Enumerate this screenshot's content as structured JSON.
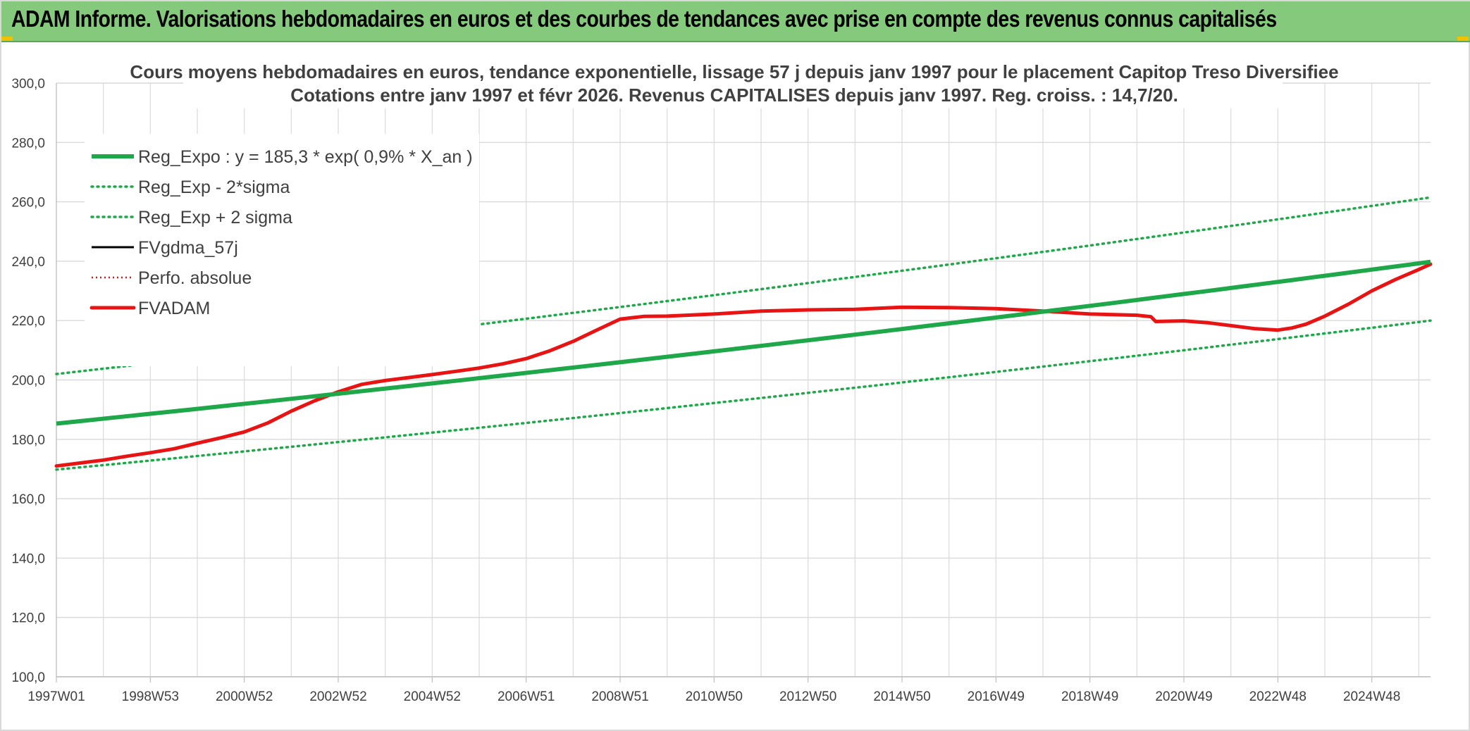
{
  "header": {
    "title": "ADAM Informe. Valorisations hebdomadaires en euros et des courbes de tendances avec prise en compte des revenus connus capitalisés"
  },
  "colors": {
    "banner": "#84c97c",
    "reg_expo": "#1fa84a",
    "fvadam": "#e81414",
    "fvgdma": "#000000",
    "perfo": "#cc1b1b",
    "grid": "#d9d9d9"
  },
  "chart_data": {
    "type": "line",
    "title": "Cours moyens hebdomadaires en euros, tendance exponentielle, lissage 57 j depuis janv 1997 pour le placement Capitop Treso Diversifiee",
    "subtitle": "Cotations entre janv 1997 et févr 2026. Revenus CAPITALISES depuis janv 1997. Reg. croiss. : 14,7/20.",
    "xlabel": "",
    "ylabel": "",
    "xlim": [
      1997.0,
      2026.25
    ],
    "ylim": [
      100,
      300
    ],
    "y_ticks": [
      "100,0",
      "120,0",
      "140,0",
      "160,0",
      "180,0",
      "200,0",
      "220,0",
      "240,0",
      "260,0",
      "280,0",
      "300,0"
    ],
    "x_ticks": [
      {
        "label": "1997W01",
        "x": 1997.0
      },
      {
        "label": "1998W53",
        "x": 1999.0
      },
      {
        "label": "2000W52",
        "x": 2001.0
      },
      {
        "label": "2002W52",
        "x": 2003.0
      },
      {
        "label": "2004W52",
        "x": 2005.0
      },
      {
        "label": "2006W51",
        "x": 2007.0
      },
      {
        "label": "2008W51",
        "x": 2009.0
      },
      {
        "label": "2010W50",
        "x": 2011.0
      },
      {
        "label": "2012W50",
        "x": 2013.0
      },
      {
        "label": "2014W50",
        "x": 2015.0
      },
      {
        "label": "2016W49",
        "x": 2017.0
      },
      {
        "label": "2018W49",
        "x": 2019.0
      },
      {
        "label": "2020W49",
        "x": 2021.0
      },
      {
        "label": "2022W48",
        "x": 2023.0
      },
      {
        "label": "2024W48",
        "x": 2025.0
      }
    ],
    "grid": true,
    "legend_position": "top-left",
    "series": [
      {
        "name": "Reg_Expo : y = 185,3 * exp( 0,9% *  X_an )",
        "style": "solid-thick",
        "x": [
          1997.0,
          2026.25
        ],
        "y": [
          185.3,
          239.8
        ]
      },
      {
        "name": "Reg_Exp - 2*sigma",
        "style": "dotted-green",
        "x": [
          1997.0,
          2026.25
        ],
        "y": [
          169.8,
          220.0
        ]
      },
      {
        "name": "Reg_Exp + 2 sigma",
        "style": "dotted-green",
        "x": [
          1997.0,
          2026.25
        ],
        "y": [
          202.0,
          261.5
        ]
      },
      {
        "name": "FVgdma_57j",
        "style": "solid-black",
        "x": [],
        "y": []
      },
      {
        "name": "Perfo. absolue",
        "style": "dotted-red",
        "x": [],
        "y": []
      },
      {
        "name": "FVADAM",
        "style": "solid-red",
        "x": [
          1997.0,
          1997.5,
          1998.0,
          1998.5,
          1999.0,
          1999.5,
          2000.0,
          2000.5,
          2001.0,
          2001.5,
          2002.0,
          2002.5,
          2003.0,
          2003.5,
          2004.0,
          2004.5,
          2005.0,
          2005.5,
          2006.0,
          2006.5,
          2007.0,
          2007.5,
          2008.0,
          2008.5,
          2009.0,
          2009.5,
          2010.0,
          2011.0,
          2012.0,
          2013.0,
          2014.0,
          2015.0,
          2016.0,
          2017.0,
          2018.0,
          2019.0,
          2019.5,
          2020.0,
          2020.3,
          2020.4,
          2021.0,
          2021.5,
          2022.0,
          2022.5,
          2023.0,
          2023.3,
          2023.6,
          2024.0,
          2024.5,
          2025.0,
          2025.5,
          2026.0,
          2026.25
        ],
        "y": [
          171.0,
          172.0,
          173.0,
          174.3,
          175.5,
          176.8,
          178.7,
          180.5,
          182.5,
          185.5,
          189.5,
          193.0,
          196.0,
          198.5,
          199.8,
          200.8,
          201.8,
          202.9,
          204.0,
          205.4,
          207.2,
          209.8,
          213.0,
          216.8,
          220.5,
          221.4,
          221.5,
          222.2,
          223.2,
          223.6,
          223.8,
          224.5,
          224.4,
          224.0,
          223.2,
          222.2,
          222.0,
          221.8,
          221.3,
          219.7,
          219.9,
          219.3,
          218.3,
          217.3,
          216.8,
          217.5,
          218.8,
          221.5,
          225.5,
          230.0,
          233.8,
          237.2,
          239.0
        ]
      }
    ]
  }
}
